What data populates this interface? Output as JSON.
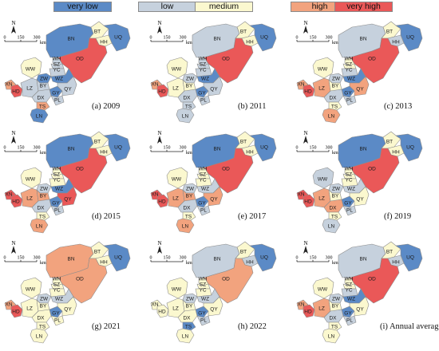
{
  "legend": {
    "items": [
      {
        "key": "vl",
        "label": "very low",
        "color": "#5b8ac6"
      },
      {
        "key": "l",
        "label": "low",
        "color": "#c6d1dd"
      },
      {
        "key": "m",
        "label": "medium",
        "color": "#fbf8cf"
      },
      {
        "key": "h",
        "label": "high",
        "color": "#f2a37e"
      },
      {
        "key": "vh",
        "label": "very high",
        "color": "#ea5858"
      }
    ]
  },
  "map_common": {
    "north_label": "N",
    "scale_labels": [
      "0",
      "150",
      "300"
    ],
    "scale_unit": "km"
  },
  "region_labels": {
    "BN": "BN",
    "BT": "BT",
    "UQ": "UQ",
    "HH": "HH",
    "OD": "OD",
    "WH": "WH",
    "SZ": "SZ",
    "YC": "YC",
    "WW": "WW",
    "ZW": "ZW",
    "WZ": "WZ",
    "XN": "XN",
    "HD": "HD",
    "LZ": "LZ",
    "BY": "BY",
    "GY": "GY",
    "QY": "QY",
    "DX": "DX",
    "PL": "PL",
    "TS": "TS",
    "LN": "LN"
  },
  "panels": [
    {
      "caption": "(a) 2009",
      "classes": {
        "BN": "vl",
        "BT": "m",
        "UQ": "vl",
        "HH": "m",
        "OD": "vh",
        "WH": "l",
        "SZ": "l",
        "YC": "l",
        "WW": "m",
        "ZW": "vl",
        "WZ": "vl",
        "XN": "h",
        "HD": "vh",
        "LZ": "l",
        "BY": "l",
        "GY": "vl",
        "QY": "l",
        "DX": "l",
        "PL": "l",
        "TS": "h",
        "LN": "vl"
      }
    },
    {
      "caption": "(b) 2011",
      "classes": {
        "BN": "l",
        "BT": "m",
        "UQ": "vl",
        "HH": "m",
        "OD": "vh",
        "WH": "l",
        "SZ": "l",
        "YC": "l",
        "WW": "m",
        "ZW": "l",
        "WZ": "vl",
        "XN": "h",
        "HD": "vh",
        "LZ": "m",
        "BY": "m",
        "GY": "vl",
        "QY": "l",
        "DX": "l",
        "PL": "l",
        "TS": "l",
        "LN": "l"
      }
    },
    {
      "caption": "(c) 2013",
      "classes": {
        "BN": "l",
        "BT": "m",
        "UQ": "vl",
        "HH": "l",
        "OD": "vh",
        "WH": "m",
        "SZ": "m",
        "YC": "l",
        "WW": "m",
        "ZW": "l",
        "WZ": "vl",
        "XN": "h",
        "HD": "vh",
        "LZ": "h",
        "BY": "m",
        "GY": "vl",
        "QY": "h",
        "DX": "l",
        "PL": "l",
        "TS": "m",
        "LN": "h"
      }
    },
    {
      "caption": "(d) 2015",
      "classes": {
        "BN": "vl",
        "BT": "m",
        "UQ": "vl",
        "HH": "m",
        "OD": "vh",
        "WH": "m",
        "SZ": "m",
        "YC": "m",
        "WW": "m",
        "ZW": "l",
        "WZ": "vl",
        "XN": "vh",
        "HD": "vh",
        "LZ": "h",
        "BY": "h",
        "GY": "vl",
        "QY": "vh",
        "DX": "l",
        "PL": "l",
        "TS": "m",
        "LN": "h"
      }
    },
    {
      "caption": "(e) 2017",
      "classes": {
        "BN": "vl",
        "BT": "m",
        "UQ": "vl",
        "HH": "m",
        "OD": "vh",
        "WH": "m",
        "SZ": "m",
        "YC": "m",
        "WW": "m",
        "ZW": "l",
        "WZ": "l",
        "XN": "vh",
        "HD": "vh",
        "LZ": "h",
        "BY": "h",
        "GY": "vl",
        "QY": "h",
        "DX": "l",
        "PL": "l",
        "TS": "m",
        "LN": "h"
      }
    },
    {
      "caption": "(f) 2019",
      "classes": {
        "BN": "vl",
        "BT": "m",
        "UQ": "vl",
        "HH": "m",
        "OD": "vh",
        "WH": "m",
        "SZ": "m",
        "YC": "m",
        "WW": "l",
        "ZW": "l",
        "WZ": "l",
        "XN": "vh",
        "HD": "vh",
        "LZ": "h",
        "BY": "m",
        "GY": "vl",
        "QY": "m",
        "DX": "h",
        "PL": "l",
        "TS": "m",
        "LN": "l"
      }
    },
    {
      "caption": "(g) 2021",
      "classes": {
        "BN": "h",
        "BT": "m",
        "UQ": "vl",
        "HH": "m",
        "OD": "h",
        "WH": "m",
        "SZ": "m",
        "YC": "m",
        "WW": "m",
        "ZW": "l",
        "WZ": "l",
        "XN": "h",
        "HD": "vh",
        "LZ": "m",
        "BY": "m",
        "GY": "vl",
        "QY": "m",
        "DX": "m",
        "PL": "m",
        "TS": "m",
        "LN": "m"
      }
    },
    {
      "caption": "(h) 2022",
      "classes": {
        "BN": "l",
        "BT": "m",
        "UQ": "vl",
        "HH": "l",
        "OD": "h",
        "WH": "m",
        "SZ": "m",
        "YC": "m",
        "WW": "m",
        "ZW": "l",
        "WZ": "l",
        "XN": "m",
        "HD": "m",
        "LZ": "m",
        "BY": "m",
        "GY": "vl",
        "QY": "m",
        "DX": "m",
        "PL": "l",
        "TS": "vl",
        "LN": "m"
      }
    },
    {
      "caption": "(i) Annual average",
      "classes": {
        "BN": "l",
        "BT": "m",
        "UQ": "vl",
        "HH": "l",
        "OD": "vh",
        "WH": "m",
        "SZ": "m",
        "YC": "l",
        "WW": "m",
        "ZW": "l",
        "WZ": "vl",
        "XN": "h",
        "HD": "vh",
        "LZ": "h",
        "BY": "m",
        "GY": "vl",
        "QY": "m",
        "DX": "l",
        "PL": "l",
        "TS": "m",
        "LN": "m"
      }
    }
  ]
}
